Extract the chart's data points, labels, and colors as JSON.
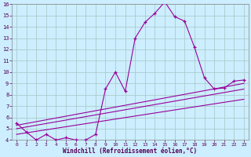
{
  "xlabel": "Windchill (Refroidissement éolien,°C)",
  "bg_color": "#cceeff",
  "line_color": "#990099",
  "grid_color": "#aacccc",
  "xlim": [
    -0.5,
    23.5
  ],
  "ylim": [
    4,
    16
  ],
  "xticks": [
    0,
    1,
    2,
    3,
    4,
    5,
    6,
    7,
    8,
    9,
    10,
    11,
    12,
    13,
    14,
    15,
    16,
    17,
    18,
    19,
    20,
    21,
    22,
    23
  ],
  "yticks": [
    4,
    5,
    6,
    7,
    8,
    9,
    10,
    11,
    12,
    13,
    14,
    15,
    16
  ],
  "main_curve_x": [
    0,
    1,
    2,
    3,
    4,
    5,
    6,
    7,
    8,
    9,
    10,
    11,
    12,
    13,
    14,
    15,
    16,
    17,
    18,
    19,
    20,
    21,
    22,
    23
  ],
  "main_curve_y": [
    5.5,
    4.7,
    4.0,
    4.5,
    4.0,
    4.2,
    4.0,
    4.0,
    4.5,
    8.5,
    10.0,
    8.3,
    13.0,
    14.4,
    15.2,
    16.2,
    14.9,
    14.5,
    12.2,
    9.5,
    8.5,
    8.6,
    9.2,
    9.3
  ],
  "trend1_x": [
    0,
    23
  ],
  "trend1_y": [
    4.5,
    7.6
  ],
  "trend2_x": [
    0,
    23
  ],
  "trend2_y": [
    5.0,
    8.5
  ],
  "trend3_x": [
    0,
    23
  ],
  "trend3_y": [
    5.3,
    9.0
  ]
}
